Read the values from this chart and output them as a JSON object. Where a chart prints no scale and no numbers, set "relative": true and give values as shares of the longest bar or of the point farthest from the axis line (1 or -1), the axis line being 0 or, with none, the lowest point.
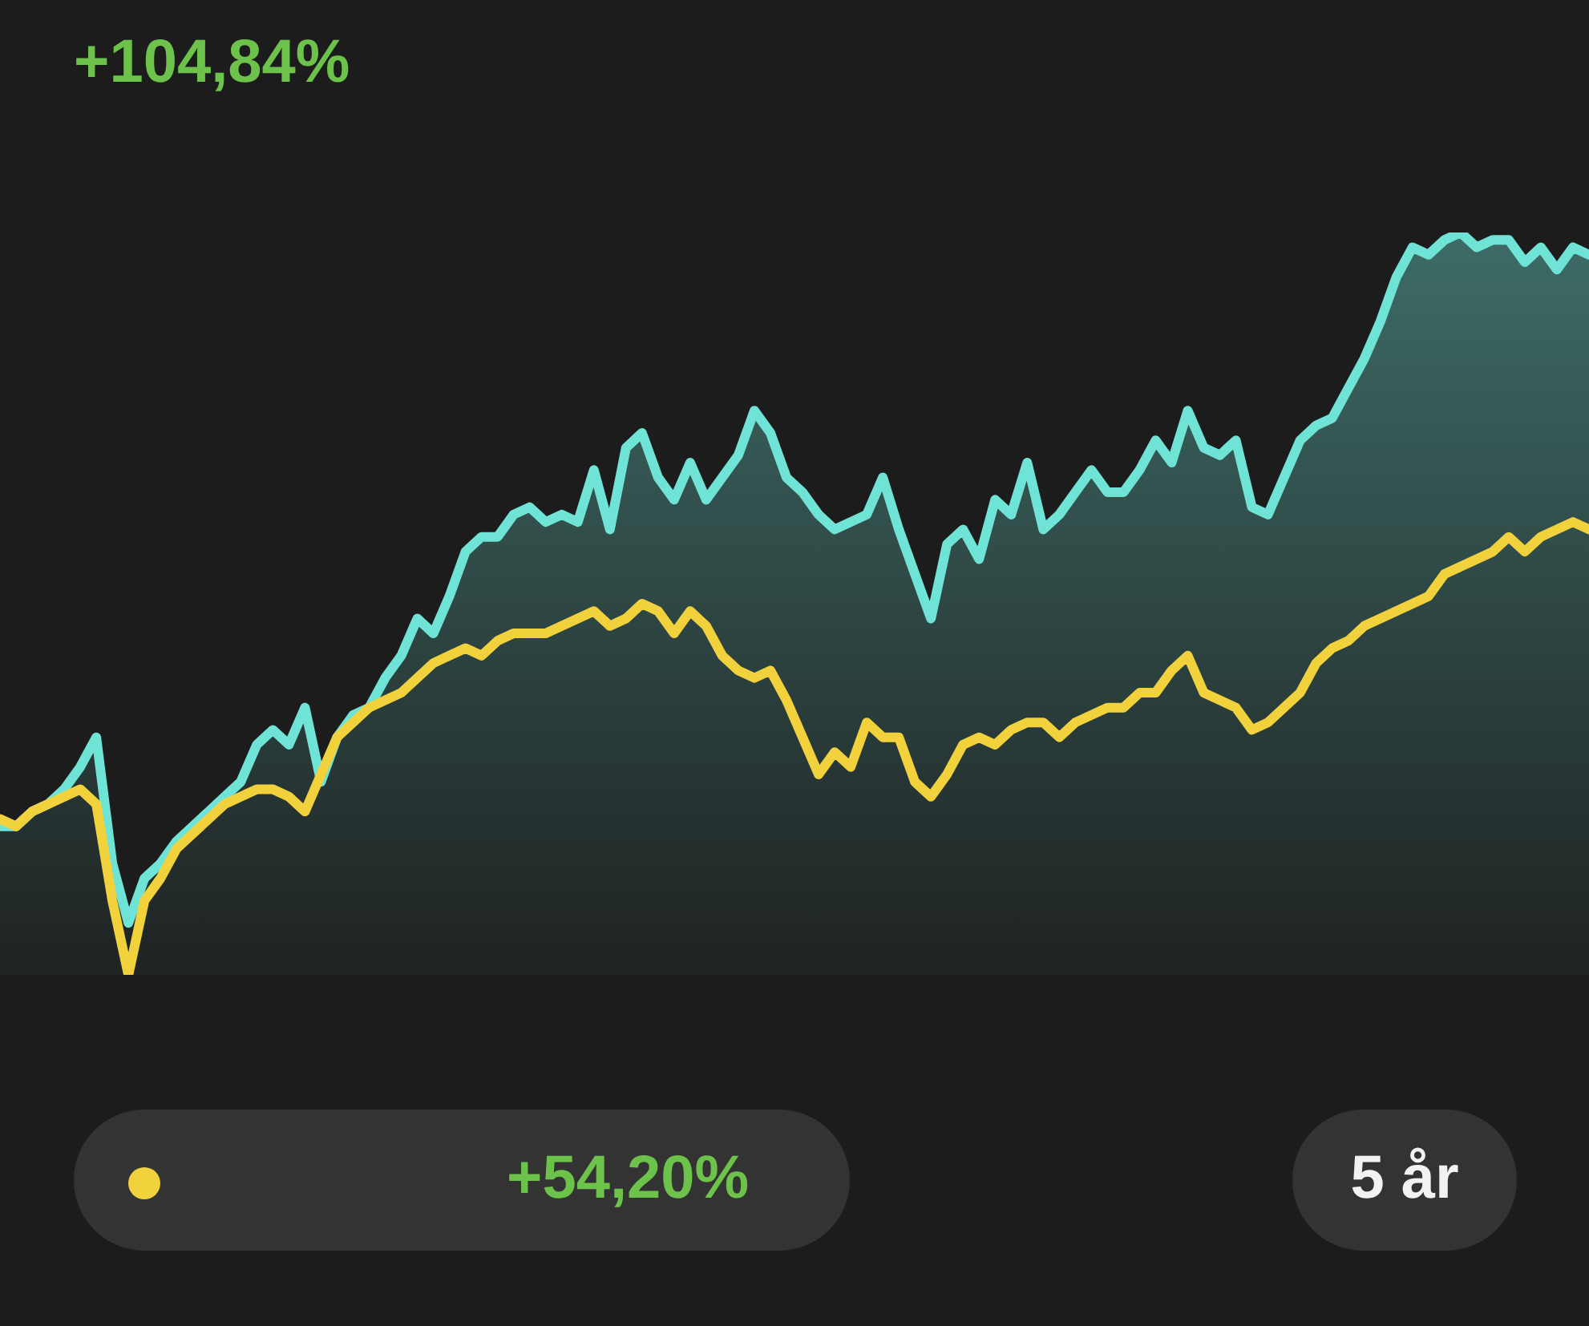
{
  "chart_data": {
    "type": "line",
    "relative": true,
    "tick_labels": false,
    "legend": false,
    "categories": [
      null,
      null,
      null,
      null,
      null,
      null,
      null,
      null,
      null,
      null,
      null,
      null,
      null,
      null,
      null,
      null,
      null,
      null,
      null,
      null,
      null,
      null,
      null,
      null,
      null,
      null,
      null,
      null,
      null,
      null,
      null,
      null,
      null,
      null,
      null,
      null,
      null,
      null,
      null,
      null,
      null,
      null,
      null,
      null,
      null,
      null,
      null,
      null,
      null,
      null,
      null,
      null,
      null,
      null,
      null,
      null,
      null,
      null,
      null,
      null,
      null,
      null,
      null,
      null,
      null,
      null,
      null,
      null,
      null,
      null,
      null,
      null,
      null,
      null,
      null,
      null,
      null,
      null,
      null,
      null,
      null,
      null,
      null,
      null,
      null,
      null,
      null,
      null,
      null,
      null,
      null,
      null,
      null,
      null,
      null,
      null,
      null,
      null,
      null,
      null
    ],
    "annotations": [
      "+104,84%",
      "+54,20%",
      "5 år"
    ],
    "series": [
      {
        "type": "area",
        "color": "#6fe3d6",
        "values": [
          0.2,
          0.2,
          0.22,
          0.23,
          0.25,
          0.28,
          0.32,
          0.15,
          0.07,
          0.13,
          0.15,
          0.18,
          0.2,
          0.22,
          0.24,
          0.26,
          0.31,
          0.33,
          0.31,
          0.36,
          0.26,
          0.32,
          0.35,
          0.36,
          0.4,
          0.43,
          0.48,
          0.46,
          0.51,
          0.57,
          0.59,
          0.59,
          0.62,
          0.63,
          0.61,
          0.62,
          0.61,
          0.68,
          0.6,
          0.71,
          0.73,
          0.67,
          0.64,
          0.69,
          0.64,
          0.67,
          0.7,
          0.76,
          0.73,
          0.67,
          0.65,
          0.62,
          0.6,
          0.61,
          0.62,
          0.67,
          0.6,
          0.54,
          0.48,
          0.58,
          0.6,
          0.56,
          0.64,
          0.62,
          0.69,
          0.6,
          0.62,
          0.65,
          0.68,
          0.65,
          0.65,
          0.68,
          0.72,
          0.69,
          0.76,
          0.71,
          0.7,
          0.72,
          0.63,
          0.62,
          0.67,
          0.72,
          0.74,
          0.75,
          0.79,
          0.83,
          0.88,
          0.94,
          0.98,
          0.97,
          0.99,
          1,
          0.98,
          0.99,
          0.99,
          0.96,
          0.98,
          0.95,
          0.98,
          0.97
        ]
      },
      {
        "type": "line",
        "color": "#f2d23c",
        "values": [
          0.21,
          0.2,
          0.22,
          0.23,
          0.24,
          0.25,
          0.23,
          0.1,
          0,
          0.1,
          0.13,
          0.17,
          0.19,
          0.21,
          0.23,
          0.24,
          0.25,
          0.25,
          0.24,
          0.22,
          0.27,
          0.32,
          0.34,
          0.36,
          0.37,
          0.38,
          0.4,
          0.42,
          0.43,
          0.44,
          0.43,
          0.45,
          0.46,
          0.46,
          0.46,
          0.47,
          0.48,
          0.49,
          0.47,
          0.48,
          0.5,
          0.49,
          0.46,
          0.49,
          0.47,
          0.43,
          0.41,
          0.4,
          0.41,
          0.37,
          0.32,
          0.27,
          0.3,
          0.28,
          0.34,
          0.32,
          0.32,
          0.26,
          0.24,
          0.27,
          0.31,
          0.32,
          0.31,
          0.33,
          0.34,
          0.34,
          0.32,
          0.34,
          0.35,
          0.36,
          0.36,
          0.38,
          0.38,
          0.41,
          0.43,
          0.38,
          0.37,
          0.36,
          0.33,
          0.34,
          0.36,
          0.38,
          0.42,
          0.44,
          0.45,
          0.47,
          0.48,
          0.49,
          0.5,
          0.51,
          0.54,
          0.55,
          0.56,
          0.57,
          0.59,
          0.57,
          0.59,
          0.6,
          0.61,
          0.6
        ]
      }
    ]
  }
}
